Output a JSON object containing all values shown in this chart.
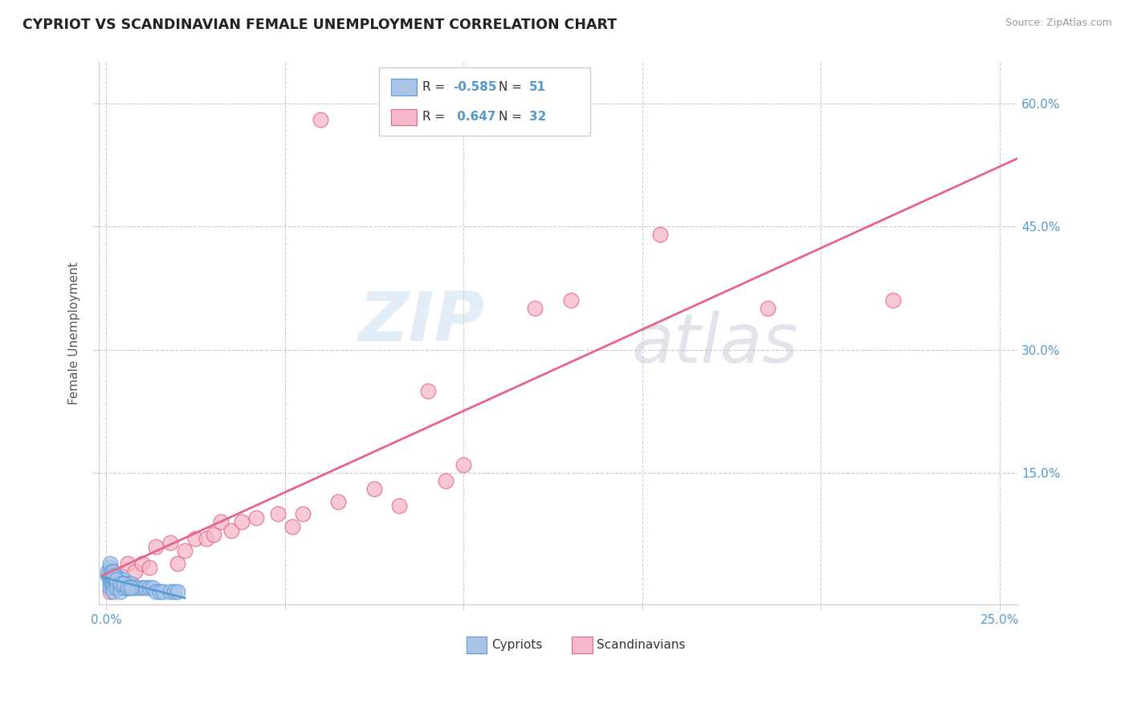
{
  "title": "CYPRIOT VS SCANDINAVIAN FEMALE UNEMPLOYMENT CORRELATION CHART",
  "source": "Source: ZipAtlas.com",
  "ylabel": "Female Unemployment",
  "xlim": [
    -0.002,
    0.255
  ],
  "ylim": [
    -0.01,
    0.65
  ],
  "xtick_labels": [
    "0.0%",
    "",
    "",
    "",
    "",
    "25.0%"
  ],
  "xtick_vals": [
    0.0,
    0.05,
    0.1,
    0.15,
    0.2,
    0.25
  ],
  "ytick_labels": [
    "15.0%",
    "30.0%",
    "45.0%",
    "60.0%"
  ],
  "ytick_vals": [
    0.15,
    0.3,
    0.45,
    0.6
  ],
  "cypriot_color": "#aac4e8",
  "scandinavian_color": "#f4b8c8",
  "cypriot_line_color": "#5b9bd5",
  "scandinavian_line_color": "#e8638a",
  "cypriot_R": -0.585,
  "cypriot_N": 51,
  "scandinavian_R": 0.647,
  "scandinavian_N": 32,
  "watermark_zip": "ZIP",
  "watermark_atlas": "atlas",
  "legend_label_cypriot": "Cypriots",
  "legend_label_scandinavian": "Scandinavians",
  "cypriot_x": [
    0.0005,
    0.001,
    0.001,
    0.001,
    0.001,
    0.001,
    0.0015,
    0.0015,
    0.002,
    0.002,
    0.002,
    0.002,
    0.002,
    0.0025,
    0.003,
    0.003,
    0.003,
    0.004,
    0.004,
    0.004,
    0.004,
    0.005,
    0.005,
    0.005,
    0.006,
    0.006,
    0.007,
    0.007,
    0.008,
    0.009,
    0.01,
    0.011,
    0.012,
    0.013,
    0.014,
    0.015,
    0.016,
    0.018,
    0.019,
    0.02,
    0.0005,
    0.001,
    0.001,
    0.0015,
    0.002,
    0.002,
    0.003,
    0.004,
    0.005,
    0.006,
    0.007
  ],
  "cypriot_y": [
    0.025,
    0.02,
    0.03,
    0.025,
    0.015,
    0.01,
    0.025,
    0.015,
    0.02,
    0.025,
    0.015,
    0.01,
    0.005,
    0.02,
    0.025,
    0.015,
    0.01,
    0.02,
    0.015,
    0.01,
    0.005,
    0.02,
    0.015,
    0.01,
    0.015,
    0.01,
    0.015,
    0.01,
    0.01,
    0.01,
    0.01,
    0.01,
    0.01,
    0.01,
    0.005,
    0.005,
    0.005,
    0.005,
    0.005,
    0.005,
    0.03,
    0.035,
    0.04,
    0.03,
    0.03,
    0.025,
    0.02,
    0.015,
    0.015,
    0.01,
    0.01
  ],
  "scandinavian_x": [
    0.001,
    0.003,
    0.006,
    0.008,
    0.01,
    0.012,
    0.014,
    0.018,
    0.02,
    0.022,
    0.025,
    0.028,
    0.03,
    0.032,
    0.035,
    0.038,
    0.042,
    0.048,
    0.052,
    0.055,
    0.06,
    0.065,
    0.075,
    0.082,
    0.09,
    0.095,
    0.1,
    0.12,
    0.13,
    0.155,
    0.185,
    0.22
  ],
  "scandinavian_y": [
    0.005,
    0.015,
    0.04,
    0.03,
    0.04,
    0.035,
    0.06,
    0.065,
    0.04,
    0.055,
    0.07,
    0.07,
    0.075,
    0.09,
    0.08,
    0.09,
    0.095,
    0.1,
    0.085,
    0.1,
    0.58,
    0.115,
    0.13,
    0.11,
    0.25,
    0.14,
    0.16,
    0.35,
    0.36,
    0.44,
    0.35,
    0.36
  ]
}
